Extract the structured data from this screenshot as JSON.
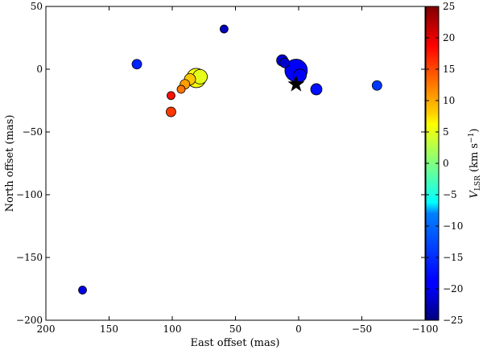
{
  "chart_data": {
    "type": "scatter",
    "xlabel": "East offset (mas)",
    "ylabel": "North offset (mas)",
    "xlim": [
      200,
      -100
    ],
    "ylim": [
      -200,
      50
    ],
    "x_reversed": true,
    "grid": false,
    "x_ticks": [
      200,
      150,
      100,
      50,
      0,
      -50,
      -100
    ],
    "y_ticks": [
      50,
      0,
      -50,
      -100,
      -150,
      -200
    ],
    "colorbar": {
      "label_main": "V",
      "label_sub": "LSR",
      "label_units": " (km s",
      "label_exp": "−1",
      "label_close": ")",
      "range": [
        -25,
        25
      ],
      "ticks": [
        25,
        20,
        15,
        10,
        5,
        0,
        -5,
        -10,
        -15,
        -20,
        -25
      ]
    },
    "points": [
      {
        "x": 171,
        "y": -176,
        "v": -20,
        "size": 5
      },
      {
        "x": 128,
        "y": 4,
        "v": -17,
        "size": 6
      },
      {
        "x": 59,
        "y": 32,
        "v": -22,
        "size": 5
      },
      {
        "x": 101,
        "y": -21,
        "v": 18,
        "size": 5
      },
      {
        "x": 101,
        "y": -34,
        "v": 16,
        "size": 6
      },
      {
        "x": 93,
        "y": -16,
        "v": 13,
        "size": 5
      },
      {
        "x": 90,
        "y": -12,
        "v": 11,
        "size": 6
      },
      {
        "x": 86,
        "y": -8,
        "v": 9,
        "size": 7
      },
      {
        "x": 81,
        "y": -7,
        "v": 6,
        "size": 12
      },
      {
        "x": 78,
        "y": -6,
        "v": 5,
        "size": 9
      },
      {
        "x": 13,
        "y": 7,
        "v": -21,
        "size": 7
      },
      {
        "x": 11,
        "y": 5,
        "v": -21,
        "size": 6
      },
      {
        "x": 2,
        "y": -1,
        "v": -19,
        "size": 14
      },
      {
        "x": -1,
        "y": -5,
        "v": -19,
        "size": 8
      },
      {
        "x": -14,
        "y": -16,
        "v": -18,
        "size": 7
      },
      {
        "x": -62,
        "y": -13,
        "v": -16,
        "size": 6
      }
    ],
    "star": {
      "x": 2,
      "y": -12
    }
  }
}
